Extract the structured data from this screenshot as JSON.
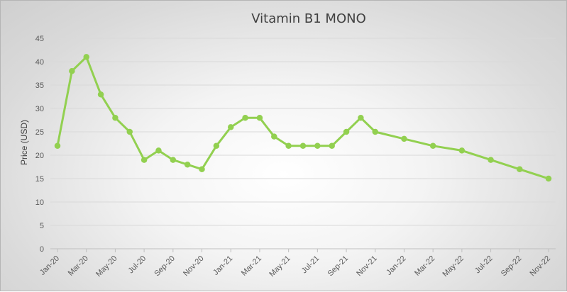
{
  "chart_data": {
    "type": "line",
    "title": "Vitamin B1 MONO",
    "xlabel": "",
    "ylabel": "Price (USD)",
    "ylim": [
      0,
      45
    ],
    "y_ticks": [
      0,
      5,
      10,
      15,
      20,
      25,
      30,
      35,
      40,
      45
    ],
    "x_tick_labels": [
      "Jan-20",
      "Mar-20",
      "May-20",
      "Jul-20",
      "Sep-20",
      "Nov-20",
      "Jan-21",
      "Mar-21",
      "May-21",
      "Jul-21",
      "Sep-21",
      "Nov-21",
      "Jan-22",
      "Mar-22",
      "May-22",
      "Jul-22",
      "Sep-22",
      "Nov-22"
    ],
    "grid": "horizontal",
    "legend": "none",
    "colors": {
      "series": "#92d050",
      "grid": "#d9d9d9",
      "axis": "#bfbfbf"
    },
    "series": [
      {
        "name": "Vitamin B1 MONO",
        "points": [
          {
            "x": "Jan-20",
            "y": 22
          },
          {
            "x": "Feb-20",
            "y": 38
          },
          {
            "x": "Mar-20",
            "y": 41
          },
          {
            "x": "Apr-20",
            "y": 33
          },
          {
            "x": "May-20",
            "y": 28
          },
          {
            "x": "Jun-20",
            "y": 25
          },
          {
            "x": "Jul-20",
            "y": 19
          },
          {
            "x": "Aug-20",
            "y": 21
          },
          {
            "x": "Sep-20",
            "y": 19
          },
          {
            "x": "Oct-20",
            "y": 18
          },
          {
            "x": "Nov-20",
            "y": 17
          },
          {
            "x": "Dec-20",
            "y": 22
          },
          {
            "x": "Jan-21",
            "y": 26
          },
          {
            "x": "Feb-21",
            "y": 28
          },
          {
            "x": "Mar-21",
            "y": 28
          },
          {
            "x": "Apr-21",
            "y": 24
          },
          {
            "x": "May-21",
            "y": 22
          },
          {
            "x": "Jun-21",
            "y": 22
          },
          {
            "x": "Jul-21",
            "y": 22
          },
          {
            "x": "Aug-21",
            "y": 22
          },
          {
            "x": "Sep-21",
            "y": 25
          },
          {
            "x": "Oct-21",
            "y": 28
          },
          {
            "x": "Nov-21",
            "y": 25
          },
          {
            "x": "Jan-22",
            "y": 23.5
          },
          {
            "x": "Mar-22",
            "y": 22
          },
          {
            "x": "May-22",
            "y": 21
          },
          {
            "x": "Jul-22",
            "y": 19
          },
          {
            "x": "Sep-22",
            "y": 17
          },
          {
            "x": "Nov-22",
            "y": 15
          }
        ]
      }
    ]
  }
}
